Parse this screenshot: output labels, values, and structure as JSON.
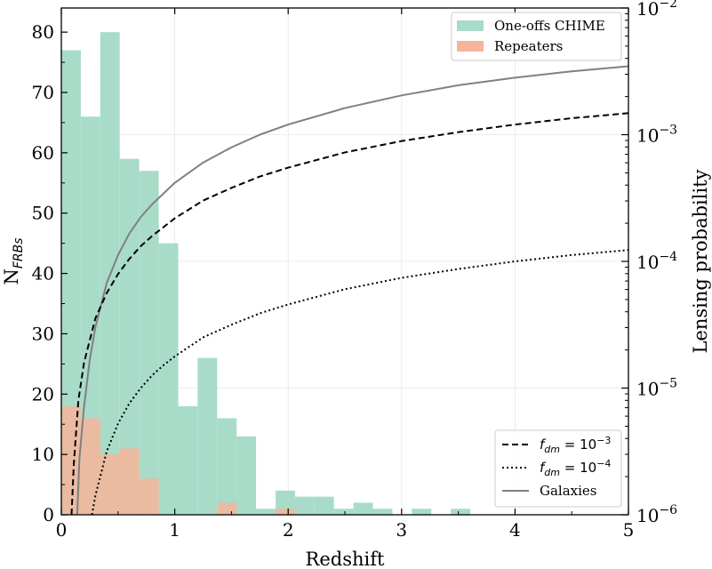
{
  "chart_data": {
    "type": "bar",
    "xlabel": "Redshift",
    "ylabel_left_base": "N",
    "ylabel_left_sub": "FRBs",
    "ylabel_right": "Lensing probability",
    "xlim": [
      0,
      5
    ],
    "ylim_left": [
      0,
      84
    ],
    "ylim_right_log10": [
      -6,
      -2
    ],
    "x_ticks": [
      {
        "v": 0,
        "label": "0"
      },
      {
        "v": 1,
        "label": "1"
      },
      {
        "v": 2,
        "label": "2"
      },
      {
        "v": 3,
        "label": "3"
      },
      {
        "v": 4,
        "label": "4"
      },
      {
        "v": 5,
        "label": "5"
      }
    ],
    "y_left_ticks": [
      {
        "v": 0,
        "label": "0"
      },
      {
        "v": 10,
        "label": "10"
      },
      {
        "v": 20,
        "label": "20"
      },
      {
        "v": 30,
        "label": "30"
      },
      {
        "v": 40,
        "label": "40"
      },
      {
        "v": 50,
        "label": "50"
      },
      {
        "v": 60,
        "label": "60"
      },
      {
        "v": 70,
        "label": "70"
      },
      {
        "v": 80,
        "label": "80"
      }
    ],
    "y_right_ticks": [
      {
        "e": -6,
        "base": "10",
        "exp": "−6"
      },
      {
        "e": -5,
        "base": "10",
        "exp": "−5"
      },
      {
        "e": -4,
        "base": "10",
        "exp": "−4"
      },
      {
        "e": -3,
        "base": "10",
        "exp": "−3"
      },
      {
        "e": -2,
        "base": "10",
        "exp": "−2"
      }
    ],
    "bin_width": 0.1717,
    "histograms": [
      {
        "name": "One-offs CHIME",
        "color": "#a8dcc9",
        "bin_starts": [
          0.0,
          0.172,
          0.343,
          0.515,
          0.687,
          0.859,
          1.03,
          1.202,
          1.374,
          1.545,
          1.717,
          1.889,
          2.06,
          2.232,
          2.404,
          2.575,
          2.747,
          2.919,
          3.09,
          3.262,
          3.434,
          3.605,
          3.777,
          3.949,
          4.12,
          4.292,
          4.464,
          4.635,
          4.807
        ],
        "values": [
          77,
          66,
          80,
          59,
          57,
          45,
          18,
          26,
          16,
          13,
          1,
          4,
          3,
          3,
          1,
          2,
          1,
          0,
          1,
          0,
          1,
          0,
          0,
          0,
          0,
          0,
          0,
          0,
          0
        ]
      },
      {
        "name": "Repeaters",
        "color": "#f6b59a",
        "bin_starts": [
          0.0,
          0.172,
          0.343,
          0.515,
          0.687,
          0.859,
          1.03,
          1.202,
          1.374,
          1.545,
          1.717,
          1.889
        ],
        "values": [
          18,
          16,
          10,
          11,
          6,
          0,
          0,
          0,
          2,
          0,
          0,
          1
        ]
      }
    ],
    "series": [
      {
        "name": "Galaxies",
        "style": "solid",
        "color": "#808080",
        "x": [
          0.14,
          0.16,
          0.2,
          0.25,
          0.3,
          0.4,
          0.5,
          0.6,
          0.7,
          0.8,
          1.0,
          1.25,
          1.5,
          1.75,
          2.0,
          2.5,
          3.0,
          3.5,
          4.0,
          4.5,
          5.0
        ],
        "log10_y": [
          -6.0,
          -5.55,
          -5.15,
          -4.78,
          -4.52,
          -4.17,
          -3.95,
          -3.78,
          -3.65,
          -3.55,
          -3.38,
          -3.22,
          -3.1,
          -3.0,
          -2.92,
          -2.79,
          -2.69,
          -2.61,
          -2.55,
          -2.5,
          -2.46
        ]
      },
      {
        "name": "f_dm = 10^-3",
        "legend_label": "f_dm = 10^−3",
        "style": "dashed",
        "color": "#000000",
        "x": [
          0.09,
          0.11,
          0.15,
          0.2,
          0.3,
          0.4,
          0.5,
          0.6,
          0.7,
          0.8,
          1.0,
          1.25,
          1.5,
          1.75,
          2.0,
          2.5,
          3.0,
          3.5,
          4.0,
          4.5,
          5.0
        ],
        "log10_y": [
          -6.0,
          -5.6,
          -5.1,
          -4.8,
          -4.45,
          -4.25,
          -4.1,
          -3.98,
          -3.88,
          -3.8,
          -3.66,
          -3.52,
          -3.42,
          -3.33,
          -3.26,
          -3.14,
          -3.05,
          -2.98,
          -2.92,
          -2.87,
          -2.83
        ]
      },
      {
        "name": "f_dm = 10^-4",
        "legend_label": "f_dm = 10^−4",
        "style": "dotted",
        "color": "#000000",
        "x": [
          0.27,
          0.3,
          0.4,
          0.5,
          0.6,
          0.7,
          0.8,
          0.9,
          1.0,
          1.25,
          1.5,
          1.75,
          2.0,
          2.5,
          3.0,
          3.5,
          4.0,
          4.5,
          5.0
        ],
        "log10_y": [
          -6.0,
          -5.85,
          -5.5,
          -5.28,
          -5.12,
          -5.0,
          -4.9,
          -4.82,
          -4.75,
          -4.6,
          -4.5,
          -4.41,
          -4.34,
          -4.22,
          -4.13,
          -4.06,
          -4.0,
          -3.95,
          -3.91
        ]
      }
    ],
    "legend_hist": {
      "placement": "top-right",
      "entries": [
        {
          "label": "One-offs CHIME",
          "color": "#a8dcc9"
        },
        {
          "label": "Repeaters",
          "color": "#f6b59a"
        }
      ]
    },
    "legend_lines": {
      "placement": "bottom-right",
      "entries": [
        {
          "label_base": "f",
          "label_sub": "dm",
          "label_mid": " = 10",
          "label_exp": "−3",
          "style": "dashed"
        },
        {
          "label_base": "f",
          "label_sub": "dm",
          "label_mid": " = 10",
          "label_exp": "−4",
          "style": "dotted"
        },
        {
          "label": "Galaxies",
          "style": "solid"
        }
      ]
    },
    "grid": true
  }
}
